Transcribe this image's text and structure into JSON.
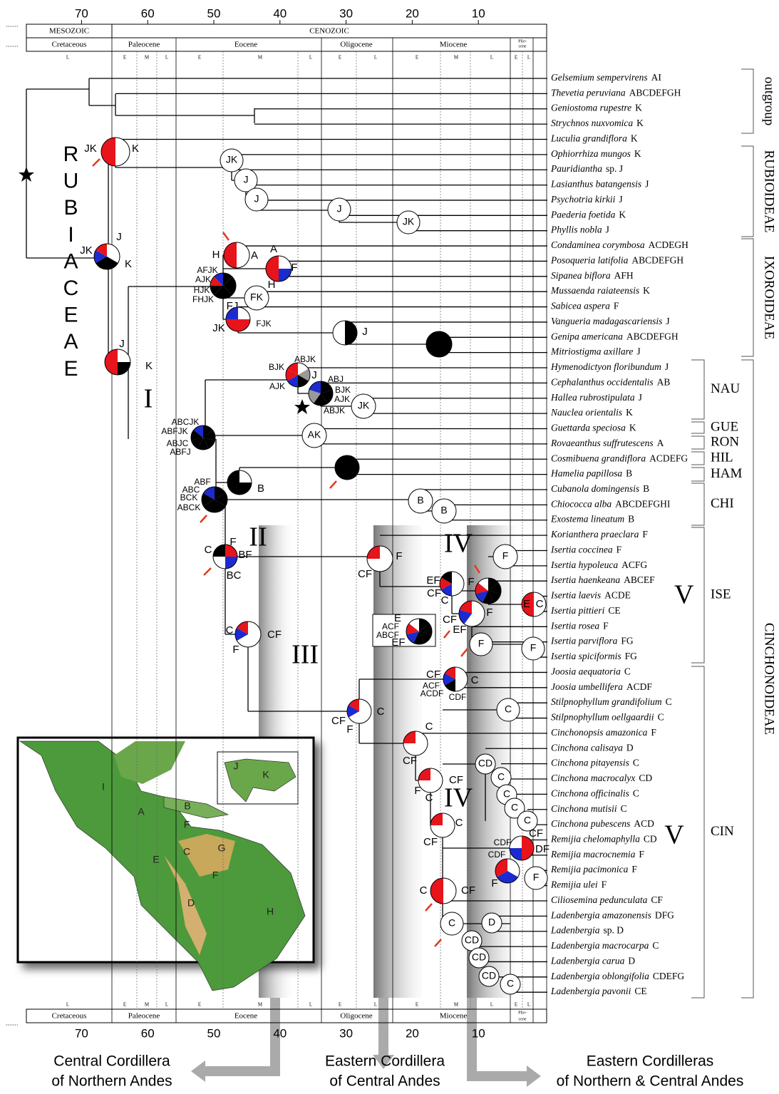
{
  "time_axis": {
    "ticks": [
      70,
      60,
      50,
      40,
      30,
      20,
      10
    ]
  },
  "eras": [
    "MESOZOIC",
    "CENOZOIC"
  ],
  "periods": [
    "Cretaceous",
    "Paleocene",
    "Eocene",
    "Oligocene",
    "Miocene"
  ],
  "pliocene_lines": [
    "Plio-",
    "cene"
  ],
  "subdivisions": [
    "L",
    "E",
    "M",
    "L",
    "E",
    "M",
    "L",
    "E",
    "L",
    "E",
    "M",
    "L",
    "E",
    "L"
  ],
  "family_label": "RUBIACEAE",
  "taxa": [
    {
      "name": "Gelsemium sempervirens",
      "areas": "AI"
    },
    {
      "name": "Thevetia peruviana",
      "areas": "ABCDEFGH"
    },
    {
      "name": "Geniostoma rupestre",
      "areas": "K"
    },
    {
      "name": "Strychnos nuxvomica",
      "areas": "K"
    },
    {
      "name": "Luculia grandiflora",
      "areas": "K"
    },
    {
      "name": "Ophiorrhiza mungos",
      "areas": "K"
    },
    {
      "name": "Pauridiantha",
      "areas": "sp. J"
    },
    {
      "name": "Lasianthus batangensis",
      "areas": "J"
    },
    {
      "name": "Psychotria kirkii",
      "areas": "J"
    },
    {
      "name": "Paederia foetida",
      "areas": "K"
    },
    {
      "name": "Phyllis nobla",
      "areas": "J"
    },
    {
      "name": "Condaminea corymbosa",
      "areas": "ACDEGH"
    },
    {
      "name": "Posoqueria latifolia",
      "areas": "ABCDEFGH"
    },
    {
      "name": "Sipanea biflora",
      "areas": "AFH"
    },
    {
      "name": "Mussaenda raiateensis",
      "areas": "K"
    },
    {
      "name": "Sabicea aspera",
      "areas": "F"
    },
    {
      "name": "Vangueria madagascariensis",
      "areas": "J"
    },
    {
      "name": "Genipa americana",
      "areas": "ABCDEFGH"
    },
    {
      "name": "Mitriostigma axillare",
      "areas": "J"
    },
    {
      "name": "Hymenodictyon floribundum",
      "areas": "J"
    },
    {
      "name": "Cephalanthus occidentalis",
      "areas": "AB"
    },
    {
      "name": "Hallea rubrostipulata",
      "areas": "J"
    },
    {
      "name": "Nauclea orientalis",
      "areas": "K"
    },
    {
      "name": "Guettarda speciosa",
      "areas": "K"
    },
    {
      "name": "Rovaeanthus suffrutescens",
      "areas": "A"
    },
    {
      "name": "Cosmibuena grandiflora",
      "areas": "ACDEFG"
    },
    {
      "name": "Hamelia papillosa",
      "areas": "B"
    },
    {
      "name": "Cubanola domingensis",
      "areas": "B"
    },
    {
      "name": "Chiococca alba",
      "areas": "ABCDEFGHI"
    },
    {
      "name": "Exostema lineatum",
      "areas": "B"
    },
    {
      "name": "Korianthera praeclara",
      "areas": "F"
    },
    {
      "name": "Isertia coccinea",
      "areas": "F"
    },
    {
      "name": "Isertia hypoleuca",
      "areas": "ACFG"
    },
    {
      "name": "Isertia haenkeana",
      "areas": "ABCEF"
    },
    {
      "name": "Isertia laevis",
      "areas": "ACDE"
    },
    {
      "name": "Isertia pittieri",
      "areas": "CE"
    },
    {
      "name": "Isertia rosea",
      "areas": "F"
    },
    {
      "name": "Isertia parviflora",
      "areas": "FG"
    },
    {
      "name": "Isertia spiciformis",
      "areas": "FG"
    },
    {
      "name": "Joosia aequatoria",
      "areas": "C"
    },
    {
      "name": "Joosia umbellifera",
      "areas": "ACDF"
    },
    {
      "name": "Stilpnophyllum grandifolium",
      "areas": "C"
    },
    {
      "name": "Stilpnophyllum oellgaardii",
      "areas": "C"
    },
    {
      "name": "Cinchonopsis amazonica",
      "areas": "F"
    },
    {
      "name": "Cinchona calisaya",
      "areas": "D"
    },
    {
      "name": "Cinchona pitayensis",
      "areas": "C"
    },
    {
      "name": "Cinchona macrocalyx",
      "areas": "CD"
    },
    {
      "name": "Cinchona officinalis",
      "areas": "C"
    },
    {
      "name": "Cinchona mutisii",
      "areas": "C"
    },
    {
      "name": "Cinchona pubescens",
      "areas": "ACD"
    },
    {
      "name": "Remijia chelomaphylla",
      "areas": "CD"
    },
    {
      "name": "Remijia macrocnemia",
      "areas": "F"
    },
    {
      "name": "Remijia pacimonica",
      "areas": "F"
    },
    {
      "name": "Remijia ulei",
      "areas": "F"
    },
    {
      "name": "Ciliosemina pedunculata",
      "areas": "CF"
    },
    {
      "name": "Ladenbergia amazonensis",
      "areas": "DFG"
    },
    {
      "name": "Ladenbergia",
      "areas": "sp. D"
    },
    {
      "name": "Ladenbergia macrocarpa",
      "areas": "C"
    },
    {
      "name": "Ladenbergia carua",
      "areas": "D"
    },
    {
      "name": "Ladenbergia oblongifolia",
      "areas": "CDEFG"
    },
    {
      "name": "Ladenbergia pavonii",
      "areas": "CE"
    }
  ],
  "subfamilies": [
    "outgroup",
    "RUBIOIDEAE",
    "IXOROIDEAE",
    "CINCHONOIDEAE"
  ],
  "tribes": [
    "NAU",
    "GUE",
    "RON",
    "HIL",
    "HAM",
    "CHI",
    "ISE",
    "CIN"
  ],
  "clades": [
    "I",
    "II",
    "III",
    "IV",
    "V",
    "IV",
    "V"
  ],
  "nodes": [
    [
      "JK",
      "K"
    ],
    [
      "JK"
    ],
    [
      "J"
    ],
    [
      "J"
    ],
    [
      "J"
    ],
    [
      "JK"
    ],
    [
      "J",
      "JK",
      "K"
    ],
    [
      "H",
      "A"
    ],
    [
      "A",
      "F",
      "H"
    ],
    [
      "AFJK",
      "AJK",
      "HJK",
      "FHJK"
    ],
    [
      "FK",
      "FJ"
    ],
    [
      "JK",
      "FJK"
    ],
    [
      "J"
    ],
    [],
    [
      "J",
      "K"
    ],
    [
      "ABJK",
      "BJK",
      "AJK",
      "J"
    ],
    [
      "ABJ",
      "BJK",
      "AJK",
      "ABJK"
    ],
    [
      "JK"
    ],
    [
      "AK"
    ],
    [
      "ABCJK",
      "ABFJK",
      "ABJC",
      "ABFJ"
    ],
    [],
    [
      "ABF",
      "ABC",
      "BCK",
      "ABCK",
      "B"
    ],
    [],
    [
      "B"
    ],
    [
      "B"
    ],
    [
      "C",
      "F",
      "BF",
      "BC"
    ],
    [
      "CF",
      "F"
    ],
    [
      "C",
      "CF",
      "F"
    ],
    [
      "EF",
      "CF",
      "C",
      "F"
    ],
    [],
    [
      "F"
    ],
    [
      "E",
      "C"
    ],
    [
      "F",
      "CF",
      "EF"
    ],
    [
      "F"
    ],
    [
      "F"
    ],
    [
      "E",
      "ACF",
      "ABCF",
      "EF"
    ],
    [
      "CF",
      "C",
      "ACF",
      "ACDF",
      "CDF"
    ],
    [
      "CF",
      "F",
      "C"
    ],
    [
      "C"
    ],
    [
      "C",
      "CF"
    ],
    [
      "CF",
      "F",
      "C"
    ],
    [
      "C",
      "CF"
    ],
    [
      "CD"
    ],
    [
      "C"
    ],
    [
      "C"
    ],
    [
      "C"
    ],
    [
      "C"
    ],
    [
      "CF",
      "CDF",
      "DF"
    ],
    [
      "CDF",
      "F"
    ],
    [
      "F"
    ],
    [
      "C",
      "CF"
    ],
    [
      "C"
    ],
    [
      "D"
    ],
    [
      "CD"
    ],
    [
      "CD"
    ],
    [
      "CD"
    ],
    [
      "C"
    ]
  ],
  "map_labels": [
    "I",
    "A",
    "B",
    "F",
    "C",
    "E",
    "G",
    "F",
    "D",
    "H",
    "J",
    "K"
  ],
  "destinations": [
    [
      "Central Cordillera",
      "of Northern Andes"
    ],
    [
      "Eastern Cordillera",
      "of Central Andes"
    ],
    [
      "Eastern Cordilleras",
      "of Northern & Central Andes"
    ]
  ]
}
